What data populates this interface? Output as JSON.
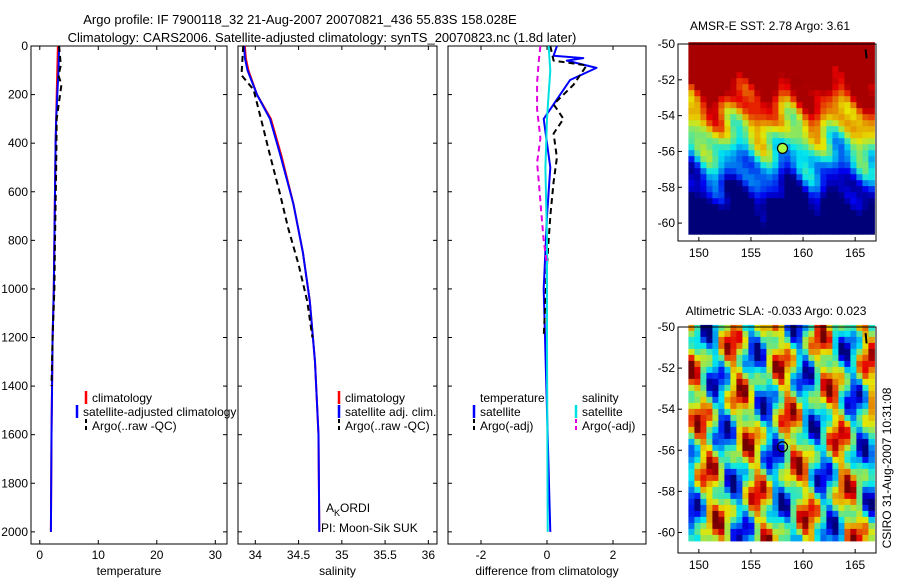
{
  "header": {
    "title_line1": "Argo profile: IF 7900118_32 21-Aug-2007 20070821_436 55.83S 158.028E",
    "title_line2": "Climatology: CARS2006. Satellite-adjusted climatology: synTS_20070823.nc (1.8d later)"
  },
  "side_label": "CSIRO 31-Aug-2007 10:31:08",
  "colors": {
    "climatology": "#ff0000",
    "satellite": "#0000ff",
    "argo": "#000000",
    "salinity_satellite": "#00e0e0",
    "salinity_argo": "#e000e0",
    "float_marker": "#a8ff40"
  },
  "chart_data": [
    {
      "id": "temperature",
      "type": "line",
      "xlabel": "temperature",
      "ylabel": "",
      "xlim": [
        -1.5,
        32
      ],
      "ylim": [
        2050,
        0
      ],
      "y_reversed": true,
      "xticks": [
        0,
        10,
        20,
        30
      ],
      "yticks": [
        0,
        200,
        400,
        600,
        800,
        1000,
        1200,
        1400,
        1600,
        1800,
        2000
      ],
      "legend": {
        "position": "lower-right",
        "entries": [
          "climatology",
          "satellite-adjusted climatology",
          "Argo(..raw -QC)"
        ]
      },
      "series": [
        {
          "name": "climatology",
          "color": "#ff0000",
          "dash": "solid",
          "x": [
            3.1,
            3.0,
            2.9,
            2.8,
            2.7,
            2.6,
            2.5,
            2.4,
            2.2,
            2.0,
            1.9
          ],
          "y": [
            0,
            100,
            200,
            300,
            400,
            600,
            800,
            1000,
            1200,
            1600,
            2000
          ]
        },
        {
          "name": "satellite-adjusted climatology",
          "color": "#0000ff",
          "dash": "solid",
          "x": [
            3.3,
            3.2,
            3.0,
            2.8,
            2.7,
            2.6,
            2.5,
            2.4,
            2.2,
            2.0,
            1.9
          ],
          "y": [
            0,
            100,
            200,
            300,
            400,
            600,
            800,
            1000,
            1200,
            1600,
            2000
          ]
        },
        {
          "name": "Argo(..raw -QC)",
          "color": "#000000",
          "dash": "dashed",
          "x": [
            3.3,
            3.6,
            3.2,
            3.7,
            2.9,
            2.8,
            2.6,
            2.5,
            2.2,
            2.0
          ],
          "y": [
            0,
            80,
            120,
            160,
            300,
            500,
            800,
            1000,
            1200,
            1400
          ]
        }
      ]
    },
    {
      "id": "salinity",
      "type": "line",
      "xlabel": "salinity",
      "ylabel": "",
      "xlim": [
        33.8,
        36.1
      ],
      "ylim": [
        2050,
        0
      ],
      "y_reversed": true,
      "xticks": [
        34,
        34.5,
        35,
        35.5,
        36
      ],
      "yticks": [
        0,
        200,
        400,
        600,
        800,
        1000,
        1200,
        1400,
        1600,
        1800,
        2000
      ],
      "legend": {
        "position": "lower-right",
        "entries": [
          "climatology",
          "satellite adj. clim.",
          "Argo(..raw -QC)"
        ]
      },
      "annotations": [
        "AKORDI",
        "PI: Moon-Sik SUK"
      ],
      "series": [
        {
          "name": "climatology",
          "color": "#ff0000",
          "dash": "solid",
          "x": [
            33.88,
            33.89,
            33.92,
            34.02,
            34.18,
            34.3,
            34.44,
            34.55,
            34.63,
            34.69,
            34.73,
            34.74
          ],
          "y": [
            0,
            50,
            100,
            200,
            300,
            450,
            650,
            850,
            1050,
            1300,
            1600,
            2000
          ]
        },
        {
          "name": "satellite adj. clim.",
          "color": "#0000ff",
          "dash": "solid",
          "x": [
            33.87,
            33.88,
            33.91,
            34.02,
            34.17,
            34.29,
            34.44,
            34.55,
            34.63,
            34.69,
            34.73,
            34.74
          ],
          "y": [
            0,
            50,
            100,
            200,
            300,
            450,
            650,
            850,
            1050,
            1300,
            1600,
            2000
          ]
        },
        {
          "name": "Argo(..raw -QC)",
          "color": "#000000",
          "dash": "dashed",
          "x": [
            33.86,
            33.84,
            33.98,
            34.08,
            34.17,
            34.28,
            34.38,
            34.5,
            34.6,
            34.66
          ],
          "y": [
            0,
            120,
            180,
            320,
            450,
            600,
            750,
            900,
            1050,
            1200
          ]
        }
      ]
    },
    {
      "id": "difference",
      "type": "line",
      "xlabel": "difference from climatology",
      "ylabel": "",
      "xlim": [
        -3,
        3
      ],
      "ylim": [
        2050,
        0
      ],
      "y_reversed": true,
      "xticks": [
        -2,
        0,
        2
      ],
      "yticks": [
        0,
        200,
        400,
        600,
        800,
        1000,
        1200,
        1400,
        1600,
        1800,
        2000
      ],
      "legend": {
        "position": "lower-center",
        "headers": [
          "temperature",
          "salinity"
        ],
        "entries": [
          "satellite",
          "Argo(-adj)",
          "satellite",
          "Argo(-adj)"
        ]
      },
      "series": [
        {
          "name": "temperature satellite",
          "color": "#0000ff",
          "dash": "solid",
          "x": [
            0.3,
            0.2,
            1.1,
            0.6,
            1.5,
            0.7,
            0.4,
            -0.1,
            0.1,
            0.0,
            -0.1,
            0.0,
            0.1
          ],
          "y": [
            0,
            40,
            50,
            60,
            90,
            140,
            200,
            300,
            500,
            700,
            1000,
            1500,
            2000
          ]
        },
        {
          "name": "temperature Argo(-adj)",
          "color": "#000000",
          "dash": "dashed",
          "x": [
            0.1,
            0.2,
            1.2,
            1.0,
            0.8,
            0.2,
            0.5,
            0.2,
            0.3,
            0.2,
            0.1,
            0.0,
            -0.1
          ],
          "y": [
            0,
            60,
            80,
            120,
            160,
            240,
            300,
            360,
            460,
            560,
            700,
            900,
            1200
          ]
        },
        {
          "name": "salinity satellite",
          "color": "#00e0e0",
          "dash": "solid",
          "x": [
            0.05,
            0.1,
            0.05,
            0.0,
            -0.05,
            0.0,
            0.0,
            0.02
          ],
          "y": [
            0,
            100,
            200,
            300,
            500,
            800,
            1200,
            2000
          ]
        },
        {
          "name": "salinity Argo(-adj)",
          "color": "#e000e0",
          "dash": "dashed",
          "x": [
            -0.2,
            -0.25,
            -0.3,
            -0.3,
            -0.2,
            -0.3,
            -0.25,
            -0.2,
            -0.15,
            -0.1,
            0.0
          ],
          "y": [
            0,
            60,
            150,
            260,
            380,
            480,
            560,
            640,
            720,
            800,
            900
          ]
        }
      ]
    },
    {
      "id": "sst-map",
      "type": "heatmap",
      "title": "AMSR-E SST: 2.78 Argo: 3.61",
      "xlim": [
        148,
        167
      ],
      "ylim": [
        -61,
        -50
      ],
      "xticks": [
        150,
        155,
        160,
        165
      ],
      "yticks": [
        -50,
        -52,
        -54,
        -56,
        -58,
        -60
      ],
      "float_position": {
        "lon": 158.028,
        "lat": -55.83
      }
    },
    {
      "id": "sla-map",
      "type": "heatmap",
      "title": "Altimetric SLA: -0.033 Argo: 0.023",
      "xlim": [
        148,
        167
      ],
      "ylim": [
        -61,
        -50
      ],
      "xticks": [
        150,
        155,
        160,
        165
      ],
      "yticks": [
        -50,
        -52,
        -54,
        -56,
        -58,
        -60
      ],
      "float_position": {
        "lon": 158.028,
        "lat": -55.83
      }
    }
  ]
}
